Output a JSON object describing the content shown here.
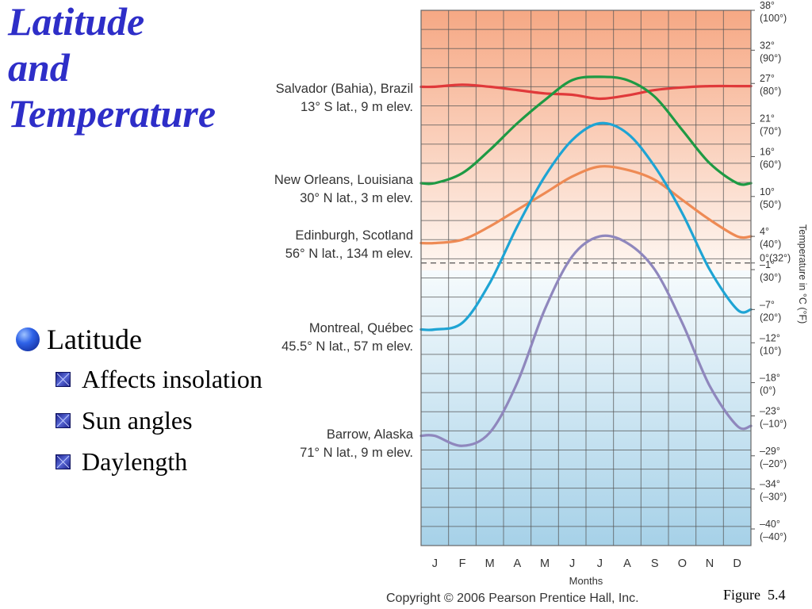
{
  "slide": {
    "title_lines": [
      "Latitude",
      "and",
      "Temperature"
    ],
    "bullet": "Latitude",
    "sub_bullets": [
      "Affects insolation",
      "Sun angles",
      "Daylength"
    ],
    "figure_label": "Figure  5.4"
  },
  "chart_data": {
    "type": "line",
    "categories": [
      "J",
      "F",
      "M",
      "A",
      "M",
      "J",
      "J",
      "A",
      "S",
      "O",
      "N",
      "D"
    ],
    "xlabel": "Months",
    "ylabel": "Temperature in °C (°F)",
    "ylim": [
      -42.5,
      38
    ],
    "reference_line": {
      "value": 0,
      "style": "dashed"
    },
    "y_ticks": [
      {
        "value": 38,
        "c": "38°",
        "f": "(100°)"
      },
      {
        "value": 32,
        "c": "32°",
        "f": "(90°)"
      },
      {
        "value": 27,
        "c": "27°",
        "f": "(80°)"
      },
      {
        "value": 21,
        "c": "21°",
        "f": "(70°)"
      },
      {
        "value": 16,
        "c": "16°",
        "f": "(60°)"
      },
      {
        "value": 10,
        "c": "10°",
        "f": "(50°)"
      },
      {
        "value": 4,
        "c": "4°",
        "f": "(40°)"
      },
      {
        "value": 0,
        "c": "0°(32°)",
        "f": ""
      },
      {
        "value": -1,
        "c": "–1°",
        "f": "(30°)"
      },
      {
        "value": -7,
        "c": "–7°",
        "f": "(20°)"
      },
      {
        "value": -12,
        "c": "–12°",
        "f": "(10°)"
      },
      {
        "value": -18,
        "c": "–18°",
        "f": "(0°)"
      },
      {
        "value": -23,
        "c": "–23°",
        "f": "(–10°)"
      },
      {
        "value": -29,
        "c": "–29°",
        "f": "(–20°)"
      },
      {
        "value": -34,
        "c": "–34°",
        "f": "(–30°)"
      },
      {
        "value": -40,
        "c": "–40°",
        "f": "(–40°)"
      }
    ],
    "series": [
      {
        "name": "Salvador (Bahia), Brazil",
        "subtitle": "13° S lat., 9 m elev.",
        "color": "#e0393a",
        "values": [
          26.5,
          26.8,
          26.5,
          26.0,
          25.5,
          25.3,
          24.7,
          25.2,
          26.0,
          26.4,
          26.6,
          26.6
        ]
      },
      {
        "name": "New Orleans, Louisiana",
        "subtitle": "30° N lat., 3 m elev.",
        "color": "#1e9a44",
        "values": [
          12.0,
          13.5,
          17.0,
          21.0,
          24.5,
          27.5,
          28.0,
          27.5,
          25.0,
          20.0,
          15.0,
          12.0
        ]
      },
      {
        "name": "Edinburgh, Scotland",
        "subtitle": "56° N lat., 134 m elev.",
        "color": "#ee8a54",
        "values": [
          3.0,
          3.5,
          5.5,
          8.0,
          10.5,
          13.0,
          14.5,
          14.0,
          12.5,
          9.5,
          6.5,
          4.0
        ]
      },
      {
        "name": "Montreal, Québec",
        "subtitle": "45.5° N lat., 57 m elev.",
        "color": "#1ea4d4",
        "values": [
          -10.0,
          -9.0,
          -3.0,
          5.5,
          13.0,
          18.5,
          21.0,
          19.5,
          14.5,
          7.5,
          -1.0,
          -7.0
        ]
      },
      {
        "name": "Barrow, Alaska",
        "subtitle": "71° N lat., 9 m elev.",
        "color": "#8f87bd",
        "values": [
          -26.0,
          -27.5,
          -25.5,
          -18.0,
          -7.0,
          1.0,
          4.0,
          3.0,
          -1.0,
          -9.0,
          -18.5,
          -24.5
        ]
      }
    ],
    "copyright": "Copyright © 2006 Pearson Prentice Hall, Inc."
  }
}
